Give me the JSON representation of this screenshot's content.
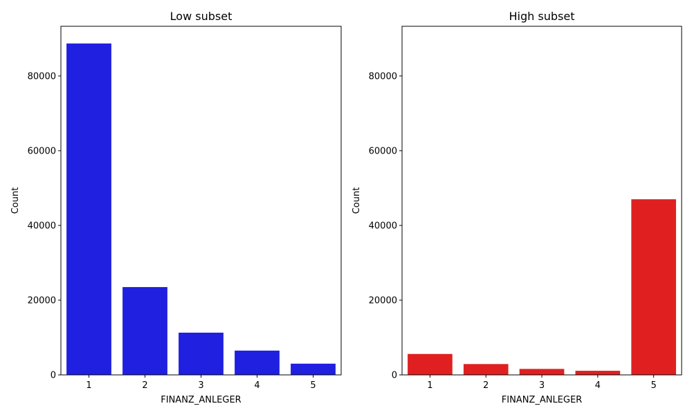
{
  "chart_data": [
    {
      "type": "bar",
      "title": "Low subset",
      "xlabel": "FINANZ_ANLEGER",
      "ylabel": "Count",
      "categories": [
        "1",
        "2",
        "3",
        "4",
        "5"
      ],
      "values": [
        88700,
        23500,
        11300,
        6500,
        3000
      ],
      "color": "#2020e0",
      "ylim": [
        0,
        93300
      ],
      "yticks": [
        0,
        20000,
        40000,
        60000,
        80000
      ],
      "grid": false
    },
    {
      "type": "bar",
      "title": "High subset",
      "xlabel": "FINANZ_ANLEGER",
      "ylabel": "Count",
      "categories": [
        "1",
        "2",
        "3",
        "4",
        "5"
      ],
      "values": [
        5600,
        2900,
        1600,
        1100,
        47000
      ],
      "color": "#e02020",
      "ylim": [
        0,
        93300
      ],
      "yticks": [
        0,
        20000,
        40000,
        60000,
        80000
      ],
      "grid": false
    }
  ]
}
